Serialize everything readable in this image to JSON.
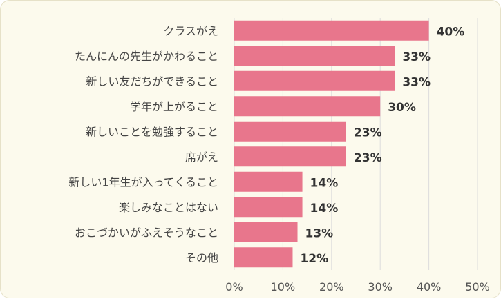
{
  "chart_data": {
    "type": "bar",
    "orientation": "horizontal",
    "categories": [
      "クラスがえ",
      "たんにんの先生がかわること",
      "新しい友だちができること",
      "学年が上がること",
      "新しいことを勉強すること",
      "席がえ",
      "新しい1年生が入ってくること",
      "楽しみなことはない",
      "おこづかいがふえそうなこと",
      "その他"
    ],
    "values": [
      40,
      33,
      33,
      30,
      23,
      23,
      14,
      14,
      13,
      12
    ],
    "value_labels": [
      "40%",
      "33%",
      "33%",
      "30%",
      "23%",
      "23%",
      "14%",
      "14%",
      "13%",
      "12%"
    ],
    "xlim": [
      0,
      50
    ],
    "ticks": [
      0,
      10,
      20,
      30,
      40,
      50
    ],
    "tick_labels": [
      "0%",
      "10%",
      "20%",
      "30%",
      "40%",
      "50%"
    ],
    "grid": true,
    "legend": "none",
    "bar_color": "#e8768c",
    "background_color": "#fcfaed"
  }
}
